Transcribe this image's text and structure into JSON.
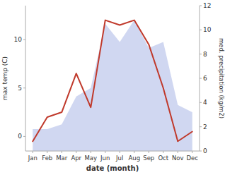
{
  "chart_data": {
    "type": "line",
    "x_label": "date (month)",
    "y_label": "max temp (C)",
    "y2_label": "med. precipitation (kg/m2)",
    "categories": [
      "Jan",
      "Feb",
      "Mar",
      "Apr",
      "May",
      "Jun",
      "Jul",
      "Aug",
      "Sep",
      "Oct",
      "Nov",
      "Dec"
    ],
    "series": [
      {
        "type": "area",
        "axis": "y2",
        "color": "#b0bce8",
        "values": [
          1.8,
          1.8,
          2.2,
          4.5,
          5.2,
          10.5,
          9.0,
          10.8,
          8.5,
          9.0,
          3.8,
          3.2
        ]
      },
      {
        "type": "line",
        "color": "#c0392b",
        "values": [
          -0.5,
          2.0,
          2.5,
          6.5,
          3.0,
          12.0,
          11.5,
          12.0,
          9.5,
          5.0,
          -0.5,
          0.5
        ]
      }
    ],
    "ylim": [
      -1.5,
      13.5
    ],
    "yticks": [
      0,
      5,
      10
    ],
    "y2lim": [
      0,
      12
    ],
    "y2ticks": [
      0,
      2,
      4,
      6,
      8,
      10,
      12
    ],
    "grid": false
  }
}
